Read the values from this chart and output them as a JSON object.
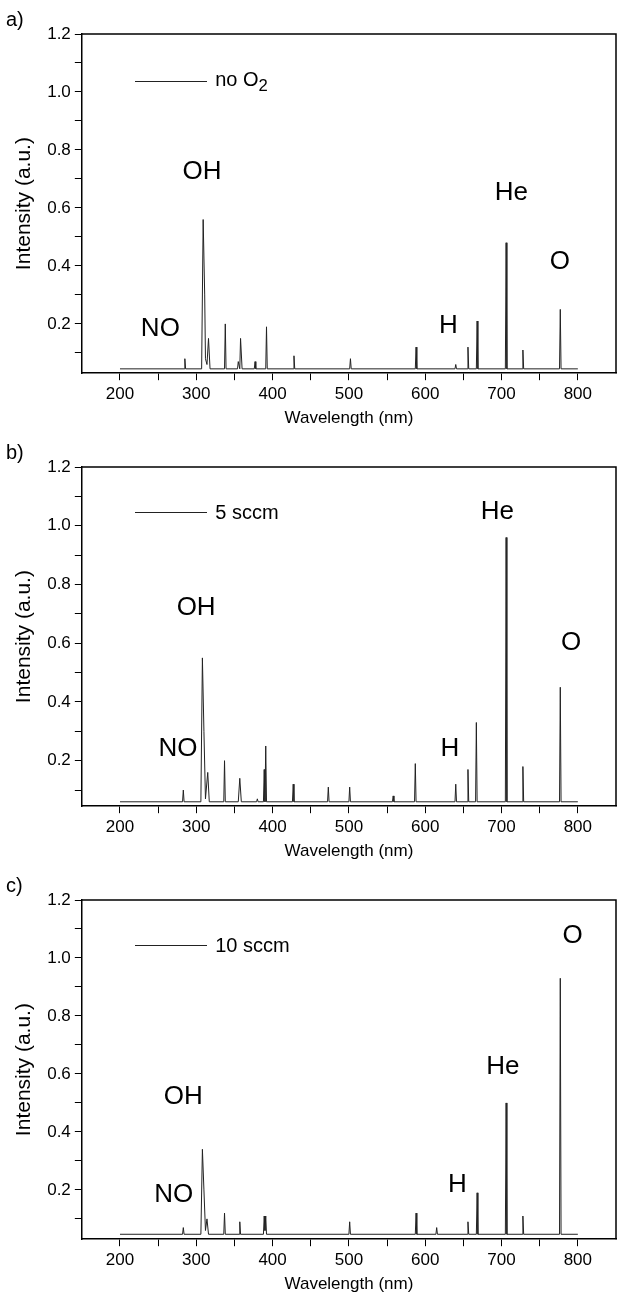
{
  "chart_data": [
    {
      "type": "line",
      "title": "a)",
      "xlabel": "Wavelength (nm)",
      "ylabel": "Intensity (a.u.)",
      "xlim": [
        150,
        850
      ],
      "ylim": [
        0.03,
        1.2
      ],
      "xticks": [
        200,
        {
          "value": 250,
          "label": null
        },
        300,
        {
          "value": 350,
          "label": null
        },
        400,
        {
          "value": 450,
          "label": null
        },
        500,
        {
          "value": 550,
          "label": null
        },
        600,
        {
          "value": 650,
          "label": null
        },
        700,
        {
          "value": 750,
          "label": null
        },
        800
      ],
      "yticks": [
        {
          "value": 0.1,
          "label": null
        },
        0.2,
        {
          "value": 0.3,
          "label": null
        },
        0.4,
        {
          "value": 0.5,
          "label": null
        },
        0.6,
        {
          "value": 0.7,
          "label": null
        },
        0.8,
        {
          "value": 0.9,
          "label": null
        },
        {
          "value": 1,
          "label": "1.0"
        },
        {
          "value": 1.1,
          "label": null
        },
        1.2
      ],
      "grid": false,
      "legend": "top left",
      "marker": "none",
      "line_style": "solid",
      "series": [
        {
          "name": "no O$_{2}$",
          "color": "#222222",
          "x": [
            200,
            284,
            285,
            286,
            307,
            309,
            311,
            312,
            314,
            316,
            318,
            337,
            338,
            339,
            354,
            355,
            357,
            358,
            360,
            376,
            377,
            378,
            391,
            392,
            393,
            427,
            428,
            429,
            501,
            502,
            503,
            587,
            588,
            589,
            639,
            640,
            641,
            655,
            656,
            657,
            667,
            668,
            669,
            705,
            706,
            707,
            727,
            728,
            729,
            776,
            777,
            778,
            800
          ],
          "values": [
            0.045,
            0.045,
            0.08,
            0.045,
            0.045,
            0.56,
            0.3,
            0.08,
            0.06,
            0.15,
            0.045,
            0.045,
            0.2,
            0.045,
            0.045,
            0.07,
            0.045,
            0.15,
            0.045,
            0.045,
            0.07,
            0.045,
            0.045,
            0.19,
            0.045,
            0.045,
            0.09,
            0.045,
            0.045,
            0.08,
            0.045,
            0.045,
            0.12,
            0.045,
            0.045,
            0.06,
            0.045,
            0.045,
            0.12,
            0.045,
            0.045,
            0.21,
            0.045,
            0.045,
            0.48,
            0.045,
            0.045,
            0.11,
            0.045,
            0.045,
            0.25,
            0.045,
            0.045
          ]
        }
      ],
      "annotations": [
        "OH",
        "NO",
        "H",
        "He",
        "O"
      ]
    },
    {
      "type": "line",
      "title": "b)",
      "xlabel": "Wavelength (nm)",
      "ylabel": "Intensity (a.u.)",
      "xlim": [
        150,
        850
      ],
      "ylim": [
        0.045,
        1.2
      ],
      "xticks": [
        200,
        {
          "value": 250,
          "label": null
        },
        300,
        {
          "value": 350,
          "label": null
        },
        400,
        {
          "value": 450,
          "label": null
        },
        500,
        {
          "value": 550,
          "label": null
        },
        600,
        {
          "value": 650,
          "label": null
        },
        700,
        {
          "value": 750,
          "label": null
        },
        800
      ],
      "yticks": [
        {
          "value": 0.1,
          "label": null
        },
        0.2,
        {
          "value": 0.3,
          "label": null
        },
        0.4,
        {
          "value": 0.5,
          "label": null
        },
        0.6,
        {
          "value": 0.7,
          "label": null
        },
        0.8,
        {
          "value": 0.9,
          "label": null
        },
        {
          "value": 1,
          "label": "1.0"
        },
        {
          "value": 1.1,
          "label": null
        },
        1.2
      ],
      "grid": false,
      "legend": "top left",
      "marker": "none",
      "line_style": "solid",
      "series": [
        {
          "name": "5 sccm",
          "color": "#222222",
          "x": [
            200,
            282,
            283,
            284,
            306,
            308,
            310,
            312,
            315,
            317,
            336,
            337,
            338,
            355,
            357,
            359,
            379,
            380,
            381,
            388,
            389,
            390,
            391,
            392,
            426,
            427,
            428,
            472,
            473,
            474,
            500,
            501,
            502,
            557,
            558,
            559,
            586,
            587,
            588,
            639,
            640,
            641,
            655,
            656,
            657,
            666,
            667,
            668,
            705,
            706,
            707,
            727,
            728,
            729,
            776,
            777,
            778,
            800
          ],
          "values": [
            0.06,
            0.06,
            0.1,
            0.06,
            0.06,
            0.55,
            0.3,
            0.07,
            0.16,
            0.06,
            0.06,
            0.2,
            0.06,
            0.06,
            0.14,
            0.06,
            0.06,
            0.07,
            0.06,
            0.06,
            0.17,
            0.06,
            0.25,
            0.06,
            0.06,
            0.12,
            0.06,
            0.06,
            0.11,
            0.06,
            0.06,
            0.11,
            0.06,
            0.06,
            0.08,
            0.06,
            0.06,
            0.19,
            0.06,
            0.06,
            0.12,
            0.06,
            0.06,
            0.17,
            0.06,
            0.06,
            0.33,
            0.06,
            0.06,
            0.96,
            0.06,
            0.06,
            0.18,
            0.06,
            0.06,
            0.45,
            0.06,
            0.06
          ]
        }
      ],
      "annotations": [
        "He",
        "OH",
        "O",
        "NO",
        "H"
      ]
    },
    {
      "type": "line",
      "title": "c)",
      "xlabel": "Wavelength (nm)",
      "ylabel": "Intensity (a.u.)",
      "xlim": [
        150,
        850
      ],
      "ylim": [
        0.03,
        1.2
      ],
      "xticks": [
        200,
        {
          "value": 250,
          "label": null
        },
        300,
        {
          "value": 350,
          "label": null
        },
        400,
        {
          "value": 450,
          "label": null
        },
        500,
        {
          "value": 550,
          "label": null
        },
        600,
        {
          "value": 650,
          "label": null
        },
        700,
        {
          "value": 750,
          "label": null
        },
        800
      ],
      "yticks": [
        {
          "value": 0.1,
          "label": null
        },
        0.2,
        {
          "value": 0.3,
          "label": null
        },
        0.4,
        {
          "value": 0.5,
          "label": null
        },
        0.6,
        {
          "value": 0.7,
          "label": null
        },
        0.8,
        {
          "value": 0.9,
          "label": null
        },
        {
          "value": 1,
          "label": "1.0"
        },
        {
          "value": 1.1,
          "label": null
        },
        1.2
      ],
      "grid": false,
      "legend": "top left",
      "marker": "none",
      "line_style": "solid",
      "series": [
        {
          "name": "10 sccm",
          "color": "#222222",
          "x": [
            200,
            282,
            283,
            284,
            306,
            308,
            310,
            312,
            314,
            316,
            336,
            337,
            338,
            356,
            357,
            358,
            388,
            389,
            390,
            391,
            392,
            500,
            501,
            502,
            587,
            588,
            589,
            614,
            615,
            616,
            655,
            656,
            657,
            667,
            668,
            669,
            705,
            706,
            707,
            727,
            728,
            729,
            776,
            777,
            778,
            800
          ],
          "values": [
            0.047,
            0.047,
            0.07,
            0.047,
            0.047,
            0.34,
            0.2,
            0.06,
            0.1,
            0.047,
            0.047,
            0.12,
            0.047,
            0.047,
            0.09,
            0.047,
            0.047,
            0.11,
            0.06,
            0.11,
            0.047,
            0.047,
            0.09,
            0.047,
            0.047,
            0.12,
            0.047,
            0.047,
            0.07,
            0.047,
            0.047,
            0.09,
            0.047,
            0.047,
            0.19,
            0.047,
            0.047,
            0.5,
            0.047,
            0.047,
            0.11,
            0.047,
            0.047,
            0.93,
            0.047,
            0.047
          ]
        }
      ],
      "annotations": [
        "O",
        "He",
        "OH",
        "NO",
        "H"
      ]
    }
  ]
}
